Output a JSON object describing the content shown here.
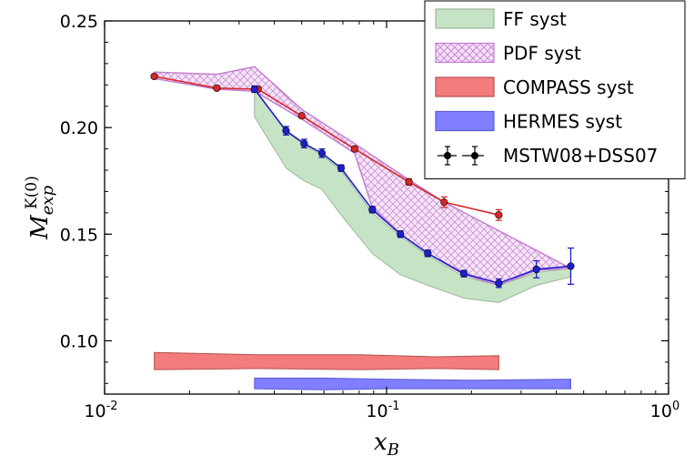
{
  "chart_data": {
    "type": "line",
    "xlabel": "x",
    "xlabel_sub": "B",
    "ylabel": "M",
    "ylabel_sub": "exp",
    "ylabel_sup": "K(0)",
    "xscale": "log",
    "xlim": [
      0.01,
      1
    ],
    "ylim": [
      0.075,
      0.25
    ],
    "x_ticks": [
      {
        "value": 0.01,
        "base": "10",
        "exp": "-2"
      },
      {
        "value": 0.1,
        "base": "10",
        "exp": "-1"
      },
      {
        "value": 1,
        "base": "10",
        "exp": "0"
      }
    ],
    "y_ticks": [
      {
        "value": 0.1,
        "label": "0.10"
      },
      {
        "value": 0.15,
        "label": "0.15"
      },
      {
        "value": 0.2,
        "label": "0.20"
      },
      {
        "value": 0.25,
        "label": "0.25"
      }
    ],
    "grid": false,
    "legend_position": "top-right",
    "legend": [
      {
        "label": "FF syst",
        "kind": "fill",
        "color": "#c6e3c6",
        "edge": "#9ab89a"
      },
      {
        "label": "PDF syst",
        "kind": "hatch",
        "color": "#d9a6e0",
        "edge": "#c27bd0"
      },
      {
        "label": "COMPASS syst",
        "kind": "fill",
        "color": "#f47c7c",
        "edge": "#b55050"
      },
      {
        "label": "HERMES syst",
        "kind": "fill",
        "color": "#7f7fff",
        "edge": "#5b5bd0"
      },
      {
        "label": "MSTW08+DSS07",
        "kind": "marker",
        "color": "#000000"
      }
    ],
    "series": [
      {
        "name": "COMPASS",
        "color": "#d62728",
        "points": [
          {
            "x": 0.015,
            "y": 0.224,
            "err": 0.0005
          },
          {
            "x": 0.025,
            "y": 0.2185,
            "err": 0.0005
          },
          {
            "x": 0.035,
            "y": 0.218,
            "err": 0.001
          },
          {
            "x": 0.05,
            "y": 0.2055,
            "err": 0.001
          },
          {
            "x": 0.077,
            "y": 0.19,
            "err": 0.001
          },
          {
            "x": 0.12,
            "y": 0.1745,
            "err": 0.0015
          },
          {
            "x": 0.16,
            "y": 0.165,
            "err": 0.0025
          },
          {
            "x": 0.25,
            "y": 0.159,
            "err": 0.0025
          }
        ]
      },
      {
        "name": "HERMES",
        "color": "#1f1fcc",
        "points": [
          {
            "x": 0.034,
            "y": 0.218,
            "err": 0.0015
          },
          {
            "x": 0.044,
            "y": 0.1985,
            "err": 0.002
          },
          {
            "x": 0.051,
            "y": 0.1925,
            "err": 0.002
          },
          {
            "x": 0.059,
            "y": 0.188,
            "err": 0.002
          },
          {
            "x": 0.069,
            "y": 0.181,
            "err": 0.0015
          },
          {
            "x": 0.089,
            "y": 0.1615,
            "err": 0.0015
          },
          {
            "x": 0.112,
            "y": 0.15,
            "err": 0.0015
          },
          {
            "x": 0.14,
            "y": 0.141,
            "err": 0.0015
          },
          {
            "x": 0.188,
            "y": 0.1315,
            "err": 0.0015
          },
          {
            "x": 0.25,
            "y": 0.127,
            "err": 0.002
          },
          {
            "x": 0.34,
            "y": 0.1335,
            "err": 0.004
          },
          {
            "x": 0.45,
            "y": 0.135,
            "err": 0.0085
          }
        ]
      }
    ],
    "bands": [
      {
        "name": "FF syst",
        "color": "#c6e3c6",
        "edge": "#9ab89a",
        "upper": [
          [
            0.034,
            0.218
          ],
          [
            0.044,
            0.198
          ],
          [
            0.051,
            0.192
          ],
          [
            0.059,
            0.187
          ],
          [
            0.069,
            0.18
          ],
          [
            0.089,
            0.16
          ],
          [
            0.112,
            0.149
          ],
          [
            0.14,
            0.14
          ],
          [
            0.188,
            0.13
          ],
          [
            0.25,
            0.126
          ],
          [
            0.34,
            0.132
          ],
          [
            0.45,
            0.134
          ]
        ],
        "lower": [
          [
            0.034,
            0.205
          ],
          [
            0.044,
            0.181
          ],
          [
            0.051,
            0.175
          ],
          [
            0.059,
            0.171
          ],
          [
            0.069,
            0.159
          ],
          [
            0.089,
            0.141
          ],
          [
            0.112,
            0.131
          ],
          [
            0.14,
            0.126
          ],
          [
            0.188,
            0.12
          ],
          [
            0.25,
            0.118
          ],
          [
            0.34,
            0.126
          ],
          [
            0.45,
            0.13
          ]
        ]
      },
      {
        "name": "PDF syst",
        "color": "#d9a6e0",
        "edge": "#c27bd0",
        "upper": [
          [
            0.015,
            0.226
          ],
          [
            0.025,
            0.225
          ],
          [
            0.034,
            0.2285
          ],
          [
            0.05,
            0.2085
          ],
          [
            0.077,
            0.1925
          ],
          [
            0.12,
            0.1755
          ],
          [
            0.16,
            0.165
          ]
        ],
        "lower": [
          [
            0.015,
            0.223
          ],
          [
            0.025,
            0.218
          ],
          [
            0.034,
            0.217
          ],
          [
            0.05,
            0.204
          ],
          [
            0.077,
            0.188
          ],
          [
            0.089,
            0.1625
          ],
          [
            0.112,
            0.15
          ],
          [
            0.14,
            0.141
          ],
          [
            0.188,
            0.131
          ],
          [
            0.25,
            0.126
          ],
          [
            0.34,
            0.133
          ],
          [
            0.45,
            0.134
          ]
        ]
      },
      {
        "name": "COMPASS syst",
        "color": "#f47c7c",
        "edge": "#b55050",
        "upper": [
          [
            0.015,
            0.0945
          ],
          [
            0.035,
            0.0935
          ],
          [
            0.08,
            0.0935
          ],
          [
            0.15,
            0.0925
          ],
          [
            0.25,
            0.093
          ]
        ],
        "lower": [
          [
            0.015,
            0.0865
          ],
          [
            0.035,
            0.087
          ],
          [
            0.08,
            0.0865
          ],
          [
            0.15,
            0.087
          ],
          [
            0.25,
            0.0865
          ]
        ]
      },
      {
        "name": "HERMES syst",
        "color": "#7f7fff",
        "edge": "#5b5bd0",
        "upper": [
          [
            0.034,
            0.0825
          ],
          [
            0.06,
            0.0825
          ],
          [
            0.1,
            0.082
          ],
          [
            0.2,
            0.0815
          ],
          [
            0.45,
            0.082
          ]
        ],
        "lower": [
          [
            0.034,
            0.0775
          ],
          [
            0.06,
            0.077
          ],
          [
            0.1,
            0.0775
          ],
          [
            0.2,
            0.0775
          ],
          [
            0.45,
            0.0775
          ]
        ]
      }
    ]
  }
}
